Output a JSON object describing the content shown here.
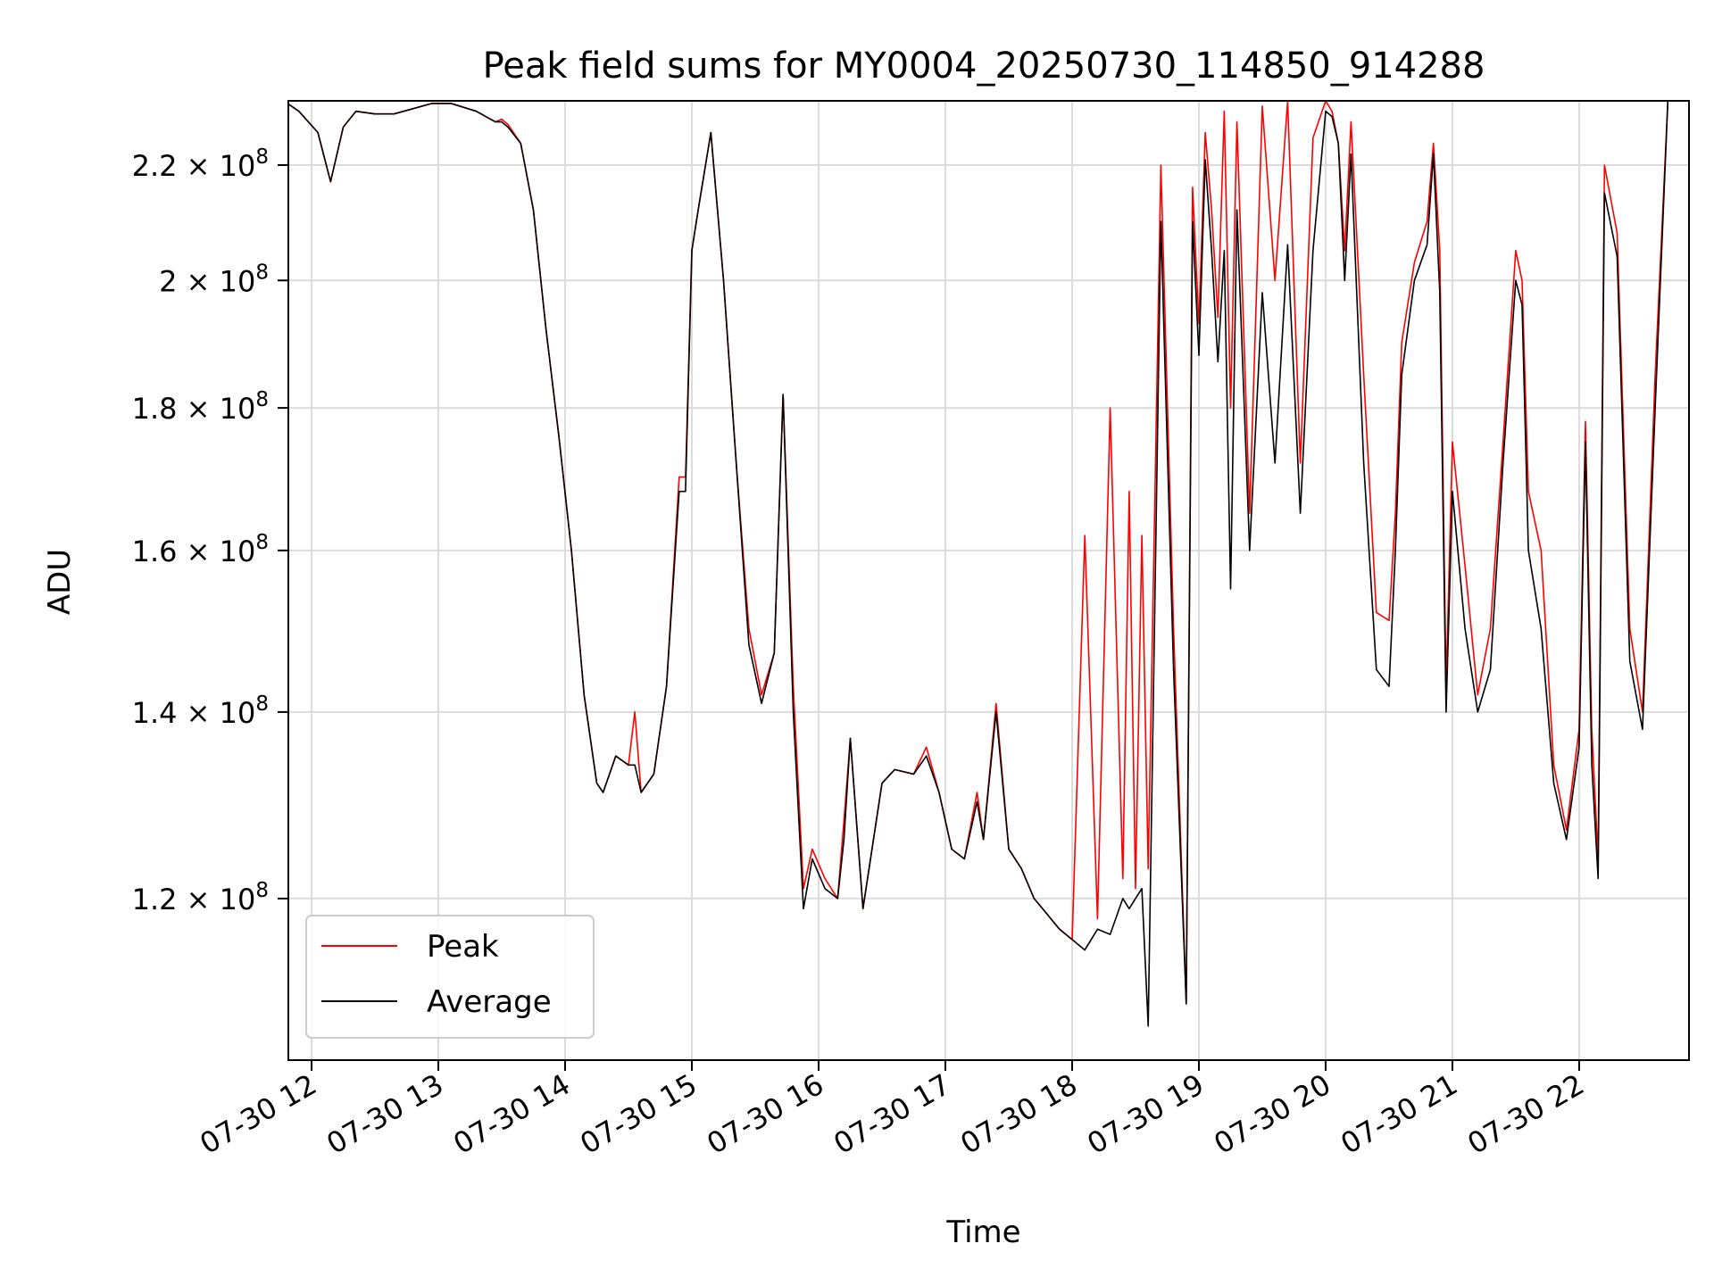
{
  "chart_data": {
    "type": "line",
    "title": "Peak field sums for MY0004_20250730_114850_914288",
    "xlabel": "Time",
    "ylabel": "ADU",
    "y_scale": "log",
    "ylim": [
      105000000,
      232000000
    ],
    "xlim": [
      "07-30 11:49",
      "07-30 22:52"
    ],
    "grid": true,
    "legend_position": "lower-left",
    "x_ticks": [
      "07-30 12",
      "07-30 13",
      "07-30 14",
      "07-30 15",
      "07-30 16",
      "07-30 17",
      "07-30 18",
      "07-30 19",
      "07-30 20",
      "07-30 21",
      "07-30 22"
    ],
    "y_ticks": [
      {
        "value": 120000000,
        "mantissa": "1.2",
        "exp": "8"
      },
      {
        "value": 140000000,
        "mantissa": "1.4",
        "exp": "8"
      },
      {
        "value": 160000000,
        "mantissa": "1.6",
        "exp": "8"
      },
      {
        "value": 180000000,
        "mantissa": "1.8",
        "exp": "8"
      },
      {
        "value": 200000000,
        "mantissa": "2",
        "exp": "8"
      },
      {
        "value": 220000000,
        "mantissa": "2.2",
        "exp": "8"
      }
    ],
    "x_hours": [
      11.78,
      11.9,
      12.05,
      12.15,
      12.25,
      12.35,
      12.5,
      12.65,
      12.8,
      12.95,
      13.1,
      13.3,
      13.45,
      13.5,
      13.55,
      13.65,
      13.75,
      13.85,
      13.95,
      14.05,
      14.15,
      14.25,
      14.3,
      14.4,
      14.5,
      14.55,
      14.6,
      14.7,
      14.8,
      14.9,
      14.95,
      15.0,
      15.05,
      15.15,
      15.25,
      15.35,
      15.45,
      15.55,
      15.65,
      15.72,
      15.8,
      15.88,
      15.95,
      16.05,
      16.15,
      16.2,
      16.25,
      16.35,
      16.5,
      16.6,
      16.75,
      16.85,
      16.95,
      17.05,
      17.15,
      17.25,
      17.3,
      17.4,
      17.5,
      17.6,
      17.7,
      17.8,
      17.9,
      18.0,
      18.1,
      18.2,
      18.3,
      18.4,
      18.45,
      18.5,
      18.55,
      18.6,
      18.7,
      18.8,
      18.9,
      18.95,
      19.0,
      19.05,
      19.1,
      19.15,
      19.2,
      19.25,
      19.3,
      19.4,
      19.5,
      19.6,
      19.7,
      19.8,
      19.9,
      20.0,
      20.05,
      20.1,
      20.15,
      20.2,
      20.3,
      20.4,
      20.5,
      20.55,
      20.6,
      20.7,
      20.8,
      20.85,
      20.9,
      20.95,
      21.0,
      21.1,
      21.2,
      21.3,
      21.4,
      21.5,
      21.55,
      21.6,
      21.7,
      21.8,
      21.9,
      22.0,
      22.05,
      22.1,
      22.15,
      22.2,
      22.3,
      22.4,
      22.5,
      22.6,
      22.7
    ],
    "series": [
      {
        "name": "Peak",
        "color": "#ff0000",
        "values": [
          232000000,
          230000000,
          226000000,
          217000000,
          227000000,
          230000000,
          229500000,
          229500000,
          230500000,
          231500000,
          231500000,
          230000000,
          228000000,
          228500000,
          227500000,
          224000000,
          212000000,
          192000000,
          176000000,
          160000000,
          142000000,
          132000000,
          131000000,
          135000000,
          134000000,
          140000000,
          131000000,
          133000000,
          143000000,
          170000000,
          170000000,
          205000000,
          212000000,
          226000000,
          200000000,
          172000000,
          150000000,
          142000000,
          147000000,
          182000000,
          143000000,
          121000000,
          125000000,
          122000000,
          120000000,
          128000000,
          137000000,
          119000000,
          132000000,
          133500000,
          133000000,
          136000000,
          131000000,
          125000000,
          124000000,
          131000000,
          126000000,
          141000000,
          125000000,
          123000000,
          120000000,
          118500000,
          117000000,
          116000000,
          162000000,
          118000000,
          180000000,
          122000000,
          168000000,
          121000000,
          162000000,
          123000000,
          220000000,
          150000000,
          110000000,
          216000000,
          193000000,
          226000000,
          212000000,
          194000000,
          230000000,
          180000000,
          228000000,
          165000000,
          231000000,
          200000000,
          232000000,
          172000000,
          225000000,
          232000000,
          230000000,
          224000000,
          205000000,
          228000000,
          185000000,
          152000000,
          151000000,
          165000000,
          190000000,
          203000000,
          210000000,
          224000000,
          205000000,
          143000000,
          175000000,
          158000000,
          142000000,
          150000000,
          175000000,
          205000000,
          200000000,
          168000000,
          160000000,
          134000000,
          127000000,
          138000000,
          178000000,
          138000000,
          124000000,
          220000000,
          208000000,
          150000000,
          140000000,
          185000000,
          232000000
        ]
      },
      {
        "name": "Average",
        "color": "#000000",
        "values": [
          232000000,
          230000000,
          226000000,
          217000000,
          227000000,
          230000000,
          229500000,
          229500000,
          230500000,
          231500000,
          231500000,
          230000000,
          228000000,
          228000000,
          227000000,
          224000000,
          212000000,
          192000000,
          176000000,
          160000000,
          142000000,
          132000000,
          131000000,
          135000000,
          134000000,
          134000000,
          131000000,
          133000000,
          143000000,
          168000000,
          168000000,
          205000000,
          212000000,
          226000000,
          200000000,
          172000000,
          148000000,
          141000000,
          147000000,
          182000000,
          140000000,
          119000000,
          124000000,
          121000000,
          120000000,
          126000000,
          137000000,
          119000000,
          132000000,
          133500000,
          133000000,
          135000000,
          131000000,
          125000000,
          124000000,
          130000000,
          126000000,
          140000000,
          125000000,
          123000000,
          120000000,
          118500000,
          117000000,
          116000000,
          115000000,
          117000000,
          116500000,
          120000000,
          119000000,
          120000000,
          121000000,
          108000000,
          210000000,
          145000000,
          110000000,
          210000000,
          188000000,
          221000000,
          205000000,
          187000000,
          205000000,
          155000000,
          212000000,
          160000000,
          198000000,
          172000000,
          206000000,
          165000000,
          205000000,
          230000000,
          229000000,
          224000000,
          200000000,
          222000000,
          172000000,
          145000000,
          143000000,
          160000000,
          185000000,
          200000000,
          206000000,
          222000000,
          198000000,
          140000000,
          168000000,
          150000000,
          140000000,
          145000000,
          172000000,
          200000000,
          196000000,
          160000000,
          150000000,
          132000000,
          126000000,
          136000000,
          175000000,
          134000000,
          122000000,
          215000000,
          204000000,
          146000000,
          138000000,
          180000000,
          232000000
        ]
      }
    ]
  }
}
